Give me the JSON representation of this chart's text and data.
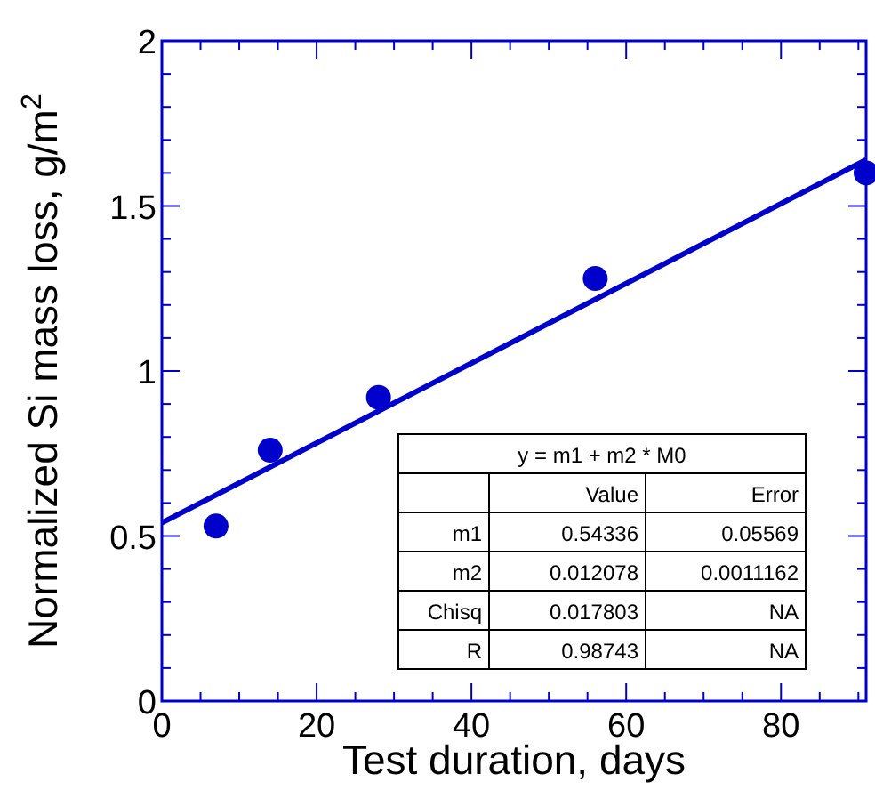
{
  "chart_data": {
    "type": "scatter",
    "xlabel": "Test duration, days",
    "ylabel": "Normalized Si mass loss, g/m$^{2}$",
    "xlim": [
      0,
      91
    ],
    "ylim": [
      0,
      2
    ],
    "xticks": [
      0,
      {
        "value": 5,
        "label": null
      },
      {
        "value": 10,
        "label": null
      },
      {
        "value": 15,
        "label": null
      },
      20,
      {
        "value": 25,
        "label": null
      },
      {
        "value": 30,
        "label": null
      },
      {
        "value": 35,
        "label": null
      },
      40,
      {
        "value": 45,
        "label": null
      },
      {
        "value": 50,
        "label": null
      },
      {
        "value": 55,
        "label": null
      },
      60,
      {
        "value": 65,
        "label": null
      },
      {
        "value": 70,
        "label": null
      },
      {
        "value": 75,
        "label": null
      },
      80,
      {
        "value": 85,
        "label": null
      },
      {
        "value": 90,
        "label": null
      }
    ],
    "yticks": [
      0,
      {
        "value": 0.1,
        "label": null
      },
      {
        "value": 0.2,
        "label": null
      },
      {
        "value": 0.3,
        "label": null
      },
      {
        "value": 0.4,
        "label": null
      },
      0.5,
      {
        "value": 0.6,
        "label": null
      },
      {
        "value": 0.7,
        "label": null
      },
      {
        "value": 0.8,
        "label": null
      },
      {
        "value": 0.9,
        "label": null
      },
      1,
      {
        "value": 1.1,
        "label": null
      },
      {
        "value": 1.2,
        "label": null
      },
      {
        "value": 1.3,
        "label": null
      },
      {
        "value": 1.4,
        "label": null
      },
      1.5,
      {
        "value": 1.6,
        "label": null
      },
      {
        "value": 1.7,
        "label": null
      },
      {
        "value": 1.8,
        "label": null
      },
      {
        "value": 1.9,
        "label": null
      },
      2
    ],
    "grid": false,
    "series": [
      {
        "type": "scatter",
        "color": "#0000cc",
        "marker": "circle",
        "x": [
          7,
          14,
          28,
          56,
          91
        ],
        "values": [
          0.53,
          0.76,
          0.92,
          1.28,
          1.6
        ]
      },
      {
        "type": "line",
        "color": "#0000cc",
        "line_style": "solid",
        "marker": "none",
        "x": [
          0,
          91
        ],
        "values": [
          0.54,
          1.64
        ]
      }
    ],
    "annotations": [
      "y = m1 + m2 * M0",
      "Value",
      "Error",
      "m1",
      "0.54336",
      "0.05569",
      "m2",
      "0.012078",
      "0.0011162",
      "Chisq",
      "0.017803",
      "NA",
      "R",
      "0.98743",
      "NA"
    ]
  }
}
